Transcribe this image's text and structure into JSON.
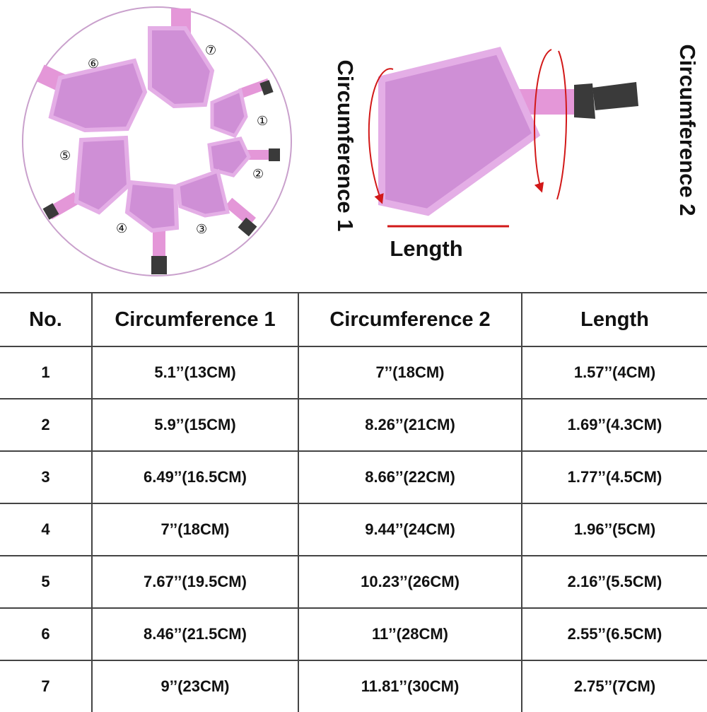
{
  "figure": {
    "size_numbers": [
      "①",
      "②",
      "③",
      "④",
      "⑤",
      "⑥",
      "⑦"
    ],
    "labels": {
      "circumference_1": "Circumference 1",
      "circumference_2": "Circumference 2",
      "length": "Length"
    },
    "colors": {
      "muzzle_fill": "#cf8fd6",
      "muzzle_trim": "#e4aee6",
      "strap": "#e497d8",
      "buckle": "#3a3a3a",
      "arrow": "#d21818",
      "ring": "#c9a0cc"
    }
  },
  "table": {
    "headers": [
      "No.",
      "Circumference 1",
      "Circumference 2",
      "Length"
    ],
    "rows": [
      [
        "1",
        "5.1’’(13CM)",
        "7’’(18CM)",
        "1.57’’(4CM)"
      ],
      [
        "2",
        "5.9’’(15CM)",
        "8.26’’(21CM)",
        "1.69’’(4.3CM)"
      ],
      [
        "3",
        "6.49’’(16.5CM)",
        "8.66’’(22CM)",
        "1.77’’(4.5CM)"
      ],
      [
        "4",
        "7’’(18CM)",
        "9.44’’(24CM)",
        "1.96’’(5CM)"
      ],
      [
        "5",
        "7.67’’(19.5CM)",
        "10.23’’(26CM)",
        "2.16’’(5.5CM)"
      ],
      [
        "6",
        "8.46’’(21.5CM)",
        "11’’(28CM)",
        "2.55’’(6.5CM)"
      ],
      [
        "7",
        "9’’(23CM)",
        "11.81’’(30CM)",
        "2.75’’(7CM)"
      ]
    ]
  }
}
